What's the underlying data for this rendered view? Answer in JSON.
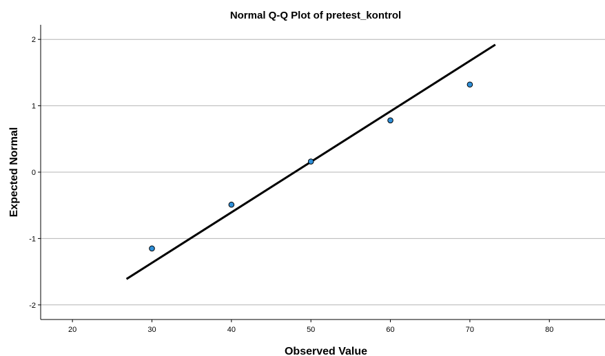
{
  "chart_data": {
    "type": "scatter",
    "title": "Normal Q-Q Plot of pretest_kontrol",
    "xlabel": "Observed Value",
    "ylabel": "Expected Normal",
    "xlim": [
      16,
      87
    ],
    "ylim": [
      -2.22,
      2.22
    ],
    "x_ticks": [
      "20",
      "30",
      "40",
      "50",
      "60",
      "70",
      "80"
    ],
    "y_ticks": [
      "2",
      "1",
      "0",
      "-1",
      "-2"
    ],
    "grid": "horizontal",
    "points": [
      {
        "x": 30,
        "y": -1.15
      },
      {
        "x": 40,
        "y": -0.49
      },
      {
        "x": 50,
        "y": 0.16
      },
      {
        "x": 60,
        "y": 0.78
      },
      {
        "x": 70,
        "y": 1.32
      }
    ],
    "reference_line": {
      "x1": 26.8,
      "y1": -1.61,
      "x2": 73.2,
      "y2": 1.92
    },
    "colors": {
      "point_fill": "#2F8FD8",
      "point_stroke": "#000000",
      "line": "#000000",
      "grid": "#b4b4b4"
    }
  }
}
